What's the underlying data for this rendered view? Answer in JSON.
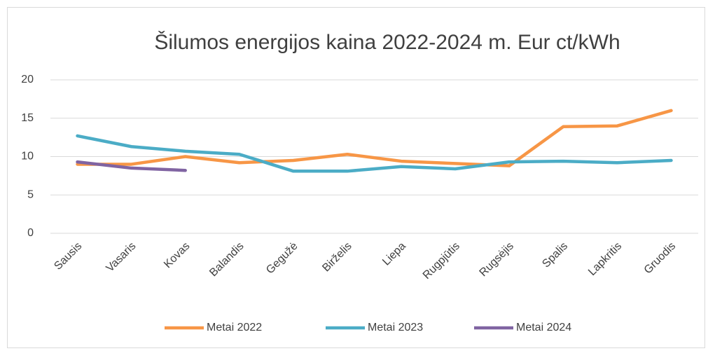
{
  "chart_data": {
    "type": "line",
    "title": "Šilumos energijos kaina 2022-2024 m. Eur ct/kWh",
    "categories": [
      "Sausis",
      "Vasaris",
      "Kovas",
      "Balandis",
      "Gegužė",
      "Birželis",
      "Liepa",
      "Rugpjūtis",
      "Rugsėjis",
      "Spalis",
      "Lapkritis",
      "Gruodis"
    ],
    "series": [
      {
        "name": "Metai 2022",
        "color": "#f79646",
        "values": [
          9.0,
          9.0,
          10.0,
          9.2,
          9.5,
          10.3,
          9.4,
          9.1,
          8.8,
          13.9,
          14.0,
          16.0
        ]
      },
      {
        "name": "Metai 2023",
        "color": "#4bacc6",
        "values": [
          12.7,
          11.3,
          10.7,
          10.3,
          8.1,
          8.1,
          8.7,
          8.4,
          9.3,
          9.4,
          9.2,
          9.5
        ]
      },
      {
        "name": "Metai 2024",
        "color": "#8064a2",
        "values": [
          9.3,
          8.5,
          8.2,
          null,
          null,
          null,
          null,
          null,
          null,
          null,
          null,
          null
        ]
      }
    ],
    "ylim": [
      0,
      20
    ],
    "yticks": [
      0,
      5,
      10,
      15,
      20
    ],
    "grid": true,
    "legend": "bottom"
  }
}
